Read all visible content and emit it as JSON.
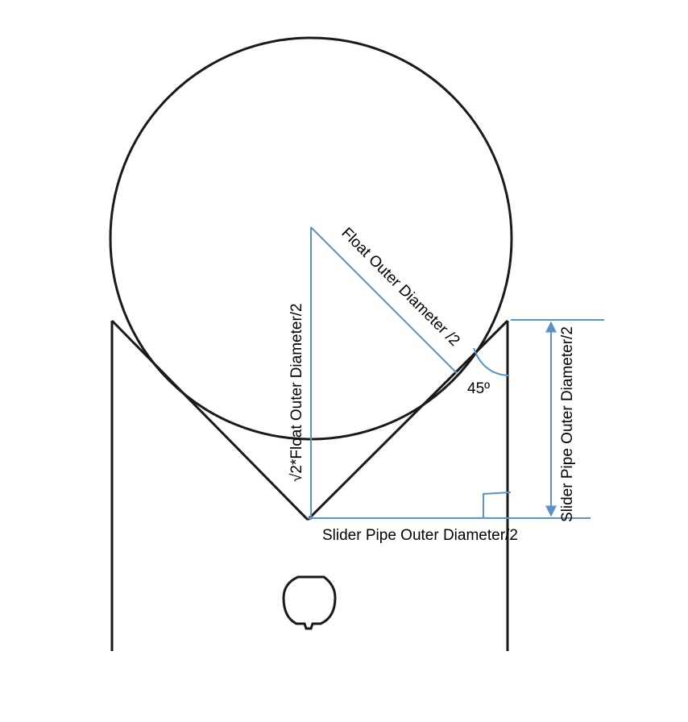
{
  "labels": {
    "float_radius": "Float Outer Diameter /2",
    "vertical_height": "√2*Float Outer Diameter/2",
    "angle": "45º",
    "pipe_height": "Slider Pipe Outer Diameter/2",
    "pipe_base": "Slider Pipe Outer Diameter/2"
  },
  "colors": {
    "outline": "#1a1a1a",
    "dimension": "#5b93c6"
  }
}
